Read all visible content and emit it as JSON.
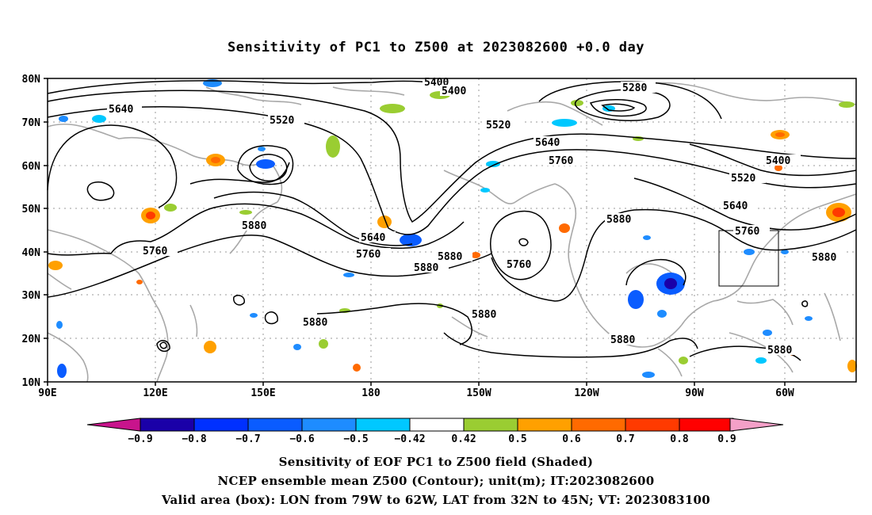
{
  "title": "Sensitivity of PC1 to Z500 at 2023082600 +0.0 day",
  "lat_labels": [
    "80N",
    "70N",
    "60N",
    "50N",
    "40N",
    "30N",
    "20N",
    "10N"
  ],
  "lon_labels": [
    "90E",
    "120E",
    "150E",
    "180",
    "150W",
    "120W",
    "90W",
    "60W"
  ],
  "contour_labels": [
    "5400",
    "5400",
    "5280",
    "5640",
    "5520",
    "5520",
    "5640",
    "5400",
    "5520",
    "5760",
    "5880",
    "5640",
    "5760",
    "5880",
    "5760",
    "5640",
    "5880",
    "5760",
    "5880",
    "5880",
    "5880",
    "5880",
    "5880",
    "5880"
  ],
  "colorbar": {
    "labels": [
      "−0.9",
      "−0.8",
      "−0.7",
      "−0.6",
      "−0.5",
      "−0.42",
      "0.42",
      "0.5",
      "0.6",
      "0.7",
      "0.8",
      "0.9"
    ],
    "colors": [
      "#1a00a8",
      "#0030ff",
      "#0a5cff",
      "#1e8cff",
      "#00c8ff",
      "#ffffff",
      "#9acd32",
      "#ffa000",
      "#ff6a00",
      "#ff3a00",
      "#ff0000"
    ],
    "low_end_color": "#c8148c",
    "high_end_color": "#f4a0c8"
  },
  "captions": {
    "line1": "Sensitivity of EOF PC1 to Z500 field (Shaded)",
    "line2": "NCEP ensemble mean Z500 (Contour); unit(m); IT:2023082600",
    "line3": "Valid area (box): LON from 79W to 62W, LAT from 32N to 45N; VT: 2023083100"
  }
}
